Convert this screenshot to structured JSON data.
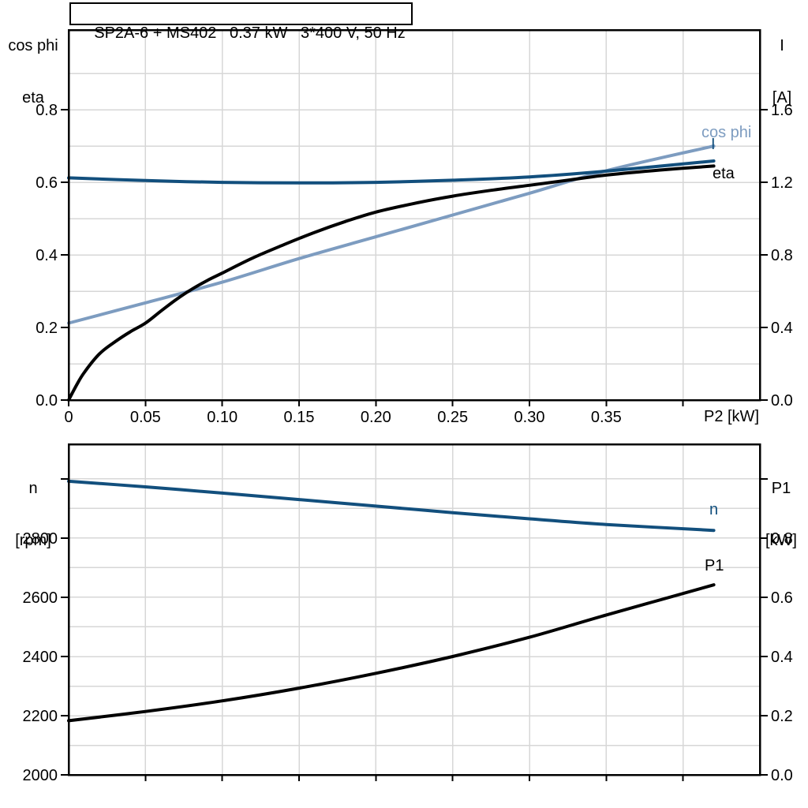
{
  "palette": {
    "dark_blue": "#124f7d",
    "light_blue": "#7d9cc0",
    "grid": "#d7d7d7",
    "axis": "#000000",
    "background": "#ffffff"
  },
  "chart_data": [
    {
      "id": "motor-performance",
      "type": "line",
      "title": "SP2A-6 + MS402   0.37 kW   3*400 V, 50 Hz",
      "legend_position": "curve-end-labels",
      "grid": true,
      "x_axis": {
        "label": "P2 [kW]",
        "min": 0,
        "max": 0.45,
        "grid_step": 0.05,
        "ticks": [
          0,
          0.05,
          0.1,
          0.15,
          0.2,
          0.25,
          0.3,
          0.35,
          0.4
        ],
        "tick_labels": [
          "0",
          "0.05",
          "0.10",
          "0.15",
          "0.20",
          "0.25",
          "0.30",
          "0.35",
          ""
        ]
      },
      "y_left": {
        "header": [
          "cos phi",
          "eta"
        ],
        "min": 0,
        "max": 1.02,
        "grid_step": 0.1,
        "grid_max": 0.9,
        "ticks": [
          0,
          0.2,
          0.4,
          0.6,
          0.8
        ],
        "tick_labels": [
          "0.0",
          "0.2",
          "0.4",
          "0.6",
          "0.8"
        ]
      },
      "y_right": {
        "header": [
          "I",
          "[A]"
        ],
        "min": 0,
        "max": 2.04,
        "ticks": [
          0,
          0.4,
          0.8,
          1.2,
          1.6
        ],
        "tick_labels": [
          "0.0",
          "0.4",
          "0.8",
          "1.2",
          "1.6"
        ]
      },
      "series": [
        {
          "name": "cos phi",
          "axis": "left",
          "color": "#7d9cc0",
          "points": [
            [
              0,
              0.212
            ],
            [
              0.05,
              0.268
            ],
            [
              0.1,
              0.325
            ],
            [
              0.15,
              0.39
            ],
            [
              0.2,
              0.45
            ],
            [
              0.25,
              0.51
            ],
            [
              0.3,
              0.57
            ],
            [
              0.35,
              0.632
            ],
            [
              0.42,
              0.7
            ]
          ]
        },
        {
          "name": "I",
          "axis": "right",
          "color": "#124f7d",
          "points": [
            [
              0,
              1.225
            ],
            [
              0.05,
              1.21
            ],
            [
              0.1,
              1.2
            ],
            [
              0.15,
              1.197
            ],
            [
              0.2,
              1.2
            ],
            [
              0.25,
              1.212
            ],
            [
              0.3,
              1.23
            ],
            [
              0.35,
              1.262
            ],
            [
              0.42,
              1.318
            ]
          ]
        },
        {
          "name": "eta",
          "axis": "left",
          "color": "#000000",
          "points": [
            [
              0,
              0
            ],
            [
              0.005,
              0.04
            ],
            [
              0.01,
              0.075
            ],
            [
              0.02,
              0.127
            ],
            [
              0.03,
              0.16
            ],
            [
              0.04,
              0.188
            ],
            [
              0.05,
              0.212
            ],
            [
              0.06,
              0.245
            ],
            [
              0.07,
              0.277
            ],
            [
              0.08,
              0.305
            ],
            [
              0.09,
              0.329
            ],
            [
              0.1,
              0.35
            ],
            [
              0.12,
              0.392
            ],
            [
              0.14,
              0.428
            ],
            [
              0.16,
              0.462
            ],
            [
              0.18,
              0.492
            ],
            [
              0.2,
              0.518
            ],
            [
              0.225,
              0.542
            ],
            [
              0.25,
              0.562
            ],
            [
              0.275,
              0.578
            ],
            [
              0.3,
              0.592
            ],
            [
              0.325,
              0.606
            ],
            [
              0.35,
              0.62
            ],
            [
              0.385,
              0.634
            ],
            [
              0.42,
              0.645
            ]
          ]
        }
      ]
    },
    {
      "id": "speed-power",
      "type": "line",
      "title": "",
      "legend_position": "curve-end-labels",
      "grid": true,
      "x_axis": {
        "label": "",
        "min": 0,
        "max": 0.45,
        "grid_step": 0.05,
        "ticks": [
          0.05,
          0.1,
          0.15,
          0.2,
          0.25,
          0.3,
          0.35,
          0.4
        ],
        "tick_labels": [
          "",
          "",
          "",
          "",
          "",
          "",
          "",
          ""
        ]
      },
      "y_left": {
        "header": [
          "n",
          "[rpm]"
        ],
        "min": 2000,
        "max": 3117,
        "grid_step": 100,
        "grid_max": 3000,
        "ticks": [
          2000,
          2200,
          2400,
          2600,
          2800,
          3000
        ],
        "tick_labels": [
          "2000",
          "2200",
          "2400",
          "2600",
          "2800",
          ""
        ]
      },
      "y_right": {
        "header": [
          "P1",
          "[kW]"
        ],
        "min": 0,
        "max": 1.117,
        "ticks": [
          0,
          0.2,
          0.4,
          0.6,
          0.8,
          1.0
        ],
        "tick_labels": [
          "0.0",
          "0.2",
          "0.4",
          "0.6",
          "0.8",
          ""
        ]
      },
      "series": [
        {
          "name": "n",
          "axis": "left",
          "color": "#124f7d",
          "points": [
            [
              0,
              2992
            ],
            [
              0.05,
              2973
            ],
            [
              0.1,
              2952
            ],
            [
              0.15,
              2930
            ],
            [
              0.2,
              2908
            ],
            [
              0.25,
              2886
            ],
            [
              0.3,
              2865
            ],
            [
              0.35,
              2846
            ],
            [
              0.42,
              2826
            ]
          ]
        },
        {
          "name": "P1",
          "axis": "right",
          "color": "#000000",
          "points": [
            [
              0,
              0.183
            ],
            [
              0.05,
              0.214
            ],
            [
              0.1,
              0.25
            ],
            [
              0.15,
              0.293
            ],
            [
              0.2,
              0.343
            ],
            [
              0.25,
              0.4
            ],
            [
              0.3,
              0.465
            ],
            [
              0.35,
              0.54
            ],
            [
              0.42,
              0.642
            ]
          ]
        }
      ]
    }
  ]
}
